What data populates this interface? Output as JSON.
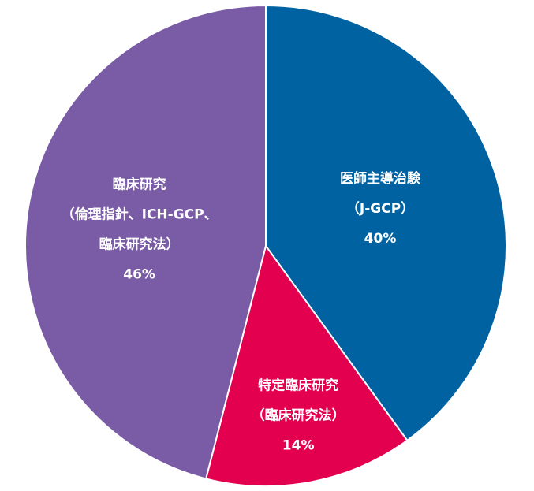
{
  "chart_data": {
    "type": "pie",
    "categories": [
      [
        "医師主導治験",
        "（J-GCP）"
      ],
      [
        "特定臨床研究",
        "（臨床研究法）"
      ],
      [
        "臨床研究",
        "（倫理指針、ICH-GCP、",
        "臨床研究法）"
      ]
    ],
    "values": [
      40,
      14,
      46
    ],
    "value_labels": [
      "40%",
      "14%",
      "46%"
    ],
    "colors": [
      "#0062a0",
      "#e2004f",
      "#7a5ba6"
    ]
  }
}
